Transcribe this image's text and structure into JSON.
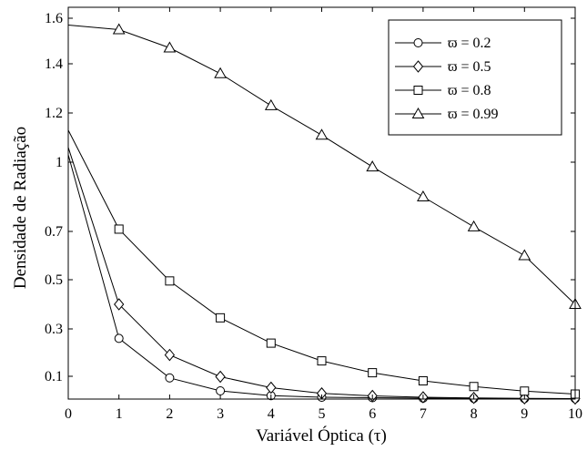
{
  "chart_data": {
    "type": "line",
    "xlabel": "Variável Óptica (τ)",
    "ylabel": "Densidade de Radiação",
    "xlim": [
      0,
      10
    ],
    "ylim": [
      0,
      1.65
    ],
    "x_ticks": [
      0,
      1,
      2,
      3,
      4,
      5,
      6,
      7,
      8,
      9,
      10
    ],
    "x_tick_labels": [
      "0",
      "1",
      "2",
      "3",
      "4",
      "5",
      "6",
      "7",
      "8",
      "9",
      "10"
    ],
    "y_ticks": [
      0.1,
      0.3,
      0.5,
      0.7,
      1.0,
      1.2,
      1.4,
      1.6
    ],
    "y_tick_labels": [
      "0.1",
      "0.3",
      "0.5",
      "0.7",
      "1",
      "1.2",
      "1.4",
      "1.6"
    ],
    "y_scale": "nonlinear (tick spacing compressed below 0.7, as printed)",
    "grid": false,
    "legend_position": "top-right",
    "x": [
      0,
      1,
      2,
      3,
      4,
      5,
      6,
      7,
      8,
      9,
      10
    ],
    "series": [
      {
        "name": "ϖ = 0.2",
        "marker": "circle",
        "values": [
          1.03,
          0.26,
          0.093,
          0.036,
          0.015,
          0.008,
          0.006,
          0.004,
          0.003,
          0.002,
          0.002
        ]
      },
      {
        "name": "ϖ = 0.5",
        "marker": "diamond",
        "values": [
          1.06,
          0.4,
          0.19,
          0.098,
          0.05,
          0.025,
          0.014,
          0.008,
          0.005,
          0.003,
          0.002
        ]
      },
      {
        "name": "ϖ = 0.8",
        "marker": "square",
        "values": [
          1.13,
          0.71,
          0.495,
          0.345,
          0.24,
          0.165,
          0.115,
          0.08,
          0.055,
          0.035,
          0.022
        ]
      },
      {
        "name": "ϖ = 0.99",
        "marker": "triangle",
        "values": [
          1.57,
          1.55,
          1.47,
          1.36,
          1.23,
          1.11,
          0.98,
          0.85,
          0.72,
          0.6,
          0.4
        ]
      }
    ]
  }
}
